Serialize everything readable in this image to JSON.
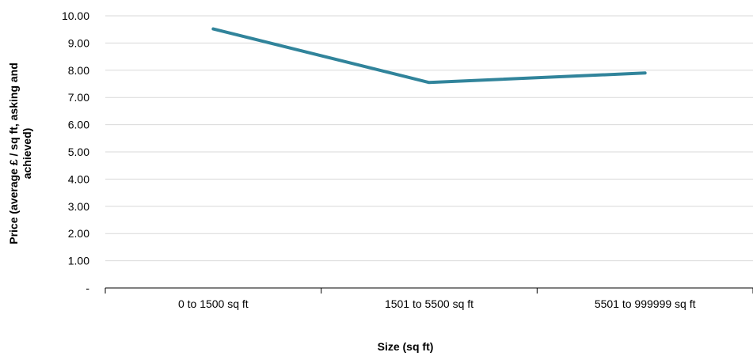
{
  "chart_data": {
    "type": "line",
    "title": "",
    "xlabel": "Size (sq ft)",
    "ylabel_lines": [
      "Price (average £ / sq ft, asking and",
      "achieved)"
    ],
    "categories": [
      "0 to 1500 sq ft",
      "1501 to 5500 sq ft",
      "5501 to 999999 sq ft"
    ],
    "series": [
      {
        "values": [
          9.52,
          7.55,
          7.9
        ],
        "color": "#31849b"
      }
    ],
    "ylim": [
      0,
      10
    ],
    "yticks": [
      {
        "value": 0,
        "label": "-"
      },
      {
        "value": 1,
        "label": "1.00"
      },
      {
        "value": 2,
        "label": "2.00"
      },
      {
        "value": 3,
        "label": "3.00"
      },
      {
        "value": 4,
        "label": "4.00"
      },
      {
        "value": 5,
        "label": "5.00"
      },
      {
        "value": 6,
        "label": "6.00"
      },
      {
        "value": 7,
        "label": "7.00"
      },
      {
        "value": 8,
        "label": "8.00"
      },
      {
        "value": 9,
        "label": "9.00"
      },
      {
        "value": 10,
        "label": "10.00"
      }
    ],
    "grid": true,
    "legend": "none",
    "gridline_color": "#d9d9d9",
    "axis_color": "#000000"
  }
}
